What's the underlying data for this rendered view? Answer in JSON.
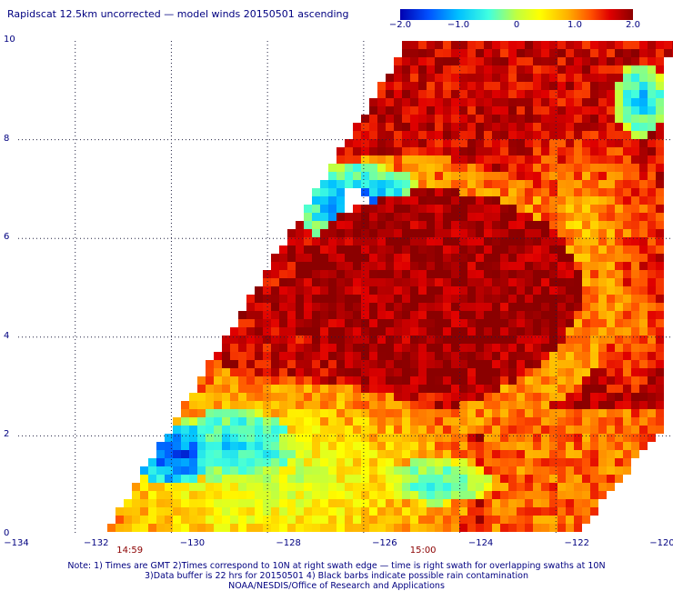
{
  "title": "Rapidscat 12.5km uncorrected — model winds 20150501 ascending",
  "colorbar": {
    "ticks": [
      "−2.0",
      "−1.0",
      "0",
      "1.0",
      "2.0"
    ],
    "tick_values": [
      -2.0,
      -1.0,
      0,
      1.0,
      2.0
    ],
    "colors": [
      "#0000b0",
      "#0050ff",
      "#00c0ff",
      "#40ffe0",
      "#c0ff40",
      "#ffff00",
      "#ffb000",
      "#ff5000",
      "#e00000",
      "#8b0000"
    ]
  },
  "axes": {
    "x_ticks": [
      "−134",
      "−132",
      "−130",
      "−128",
      "−126",
      "−124",
      "−122",
      "−120"
    ],
    "y_ticks": [
      "0",
      "2",
      "4",
      "6",
      "8",
      "10"
    ],
    "x_range": [
      -134,
      -120
    ],
    "y_range": [
      0,
      10
    ]
  },
  "times": [
    {
      "label": "14:59",
      "lon": -131.3
    },
    {
      "label": "15:00",
      "lon": -125.2
    }
  ],
  "notes": [
    "Note: 1) Times are GMT 2)Times correspond to 10N at right swath edge — time is right swath for overlapping swaths at 10N",
    "3)Data buffer is 22 hrs for 20150501 4) Black barbs indicate possible rain contamination",
    "NOAA/NESDIS/Office of Research and Applications"
  ]
}
